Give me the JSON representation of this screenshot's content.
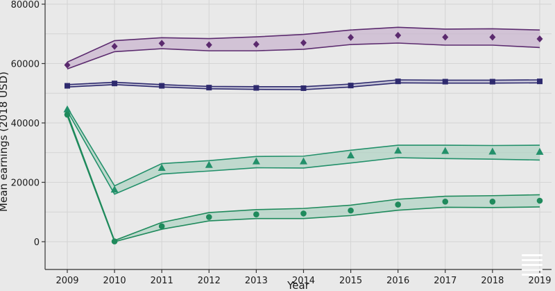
{
  "chart_data": {
    "type": "line",
    "title": "",
    "xlabel": "Year",
    "ylabel": "Mean earnings (2018 USD)",
    "x": [
      2009,
      2010,
      2011,
      2012,
      2013,
      2014,
      2015,
      2016,
      2017,
      2018,
      2019
    ],
    "ylim": [
      -5000,
      80000
    ],
    "yticks": [
      0,
      20000,
      40000,
      60000,
      80000
    ],
    "grid": true,
    "series": [
      {
        "marker": "diamond",
        "color": "#5b2a6e",
        "fill": "#c9b6cf",
        "values": [
          59500,
          65800,
          66800,
          66300,
          66500,
          67000,
          68800,
          69500,
          68900,
          68900,
          68300
        ],
        "upper": [
          60500,
          67700,
          68700,
          68400,
          69000,
          69800,
          71300,
          72200,
          71600,
          71700,
          71300
        ],
        "lower": [
          58200,
          64000,
          65000,
          64300,
          64300,
          64800,
          66400,
          66900,
          66200,
          66200,
          65400
        ]
      },
      {
        "marker": "square",
        "color": "#2e2a6e",
        "fill": "#b9b8d0",
        "values": [
          52500,
          53300,
          52500,
          51900,
          51800,
          51700,
          52600,
          54000,
          53900,
          53900,
          54000
        ],
        "upper": [
          52900,
          53700,
          52900,
          52300,
          52200,
          52200,
          53100,
          54500,
          54400,
          54400,
          54500
        ],
        "lower": [
          52100,
          52900,
          52100,
          51500,
          51300,
          51200,
          52100,
          53500,
          53400,
          53400,
          53500
        ]
      },
      {
        "marker": "triangle",
        "color": "#22906a",
        "fill": "#b2d3c4",
        "values": [
          44500,
          17500,
          24800,
          25800,
          27000,
          27000,
          29000,
          30600,
          30500,
          30300,
          30200
        ],
        "upper": [
          45200,
          18800,
          26300,
          27300,
          28700,
          28800,
          30800,
          32500,
          32500,
          32400,
          32500
        ],
        "lower": [
          44000,
          16000,
          22800,
          23800,
          24900,
          24800,
          26500,
          28300,
          28000,
          27800,
          27500
        ]
      },
      {
        "marker": "circle",
        "color": "#1f8a5c",
        "fill": "#b2d3c4",
        "values": [
          42800,
          100,
          5200,
          8300,
          9200,
          9500,
          10500,
          12500,
          13500,
          13500,
          13800
        ],
        "upper": [
          43200,
          400,
          6500,
          9800,
          10800,
          11200,
          12300,
          14300,
          15300,
          15500,
          15800
        ],
        "lower": [
          42400,
          0,
          4200,
          7000,
          7800,
          7800,
          8800,
          10600,
          11600,
          11500,
          11700
        ]
      }
    ]
  },
  "logo": {
    "icon": "stacked-lines-icon"
  }
}
